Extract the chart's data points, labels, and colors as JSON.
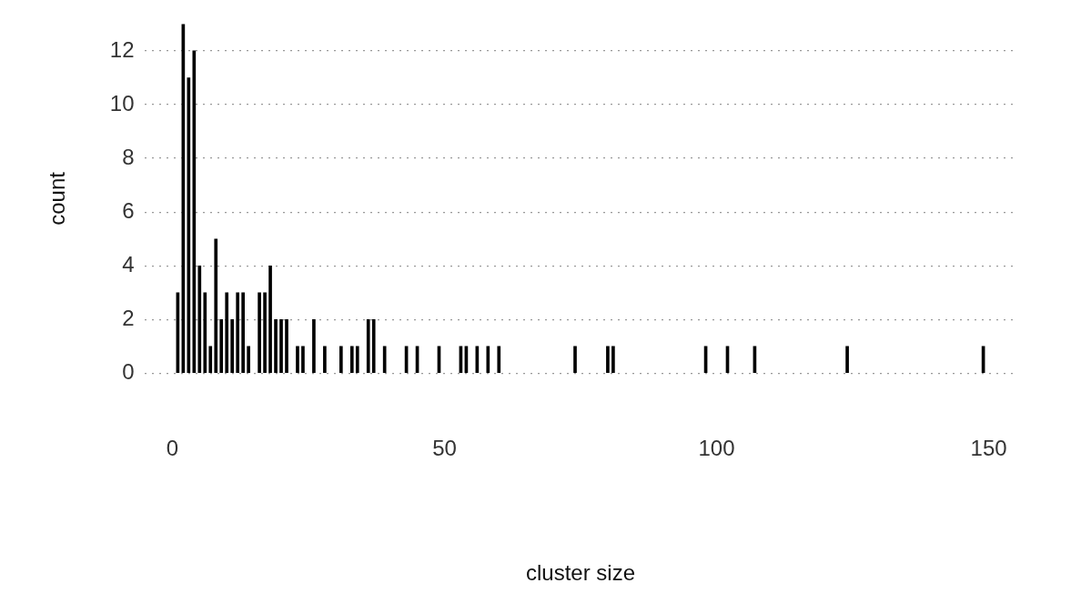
{
  "chart_data": {
    "type": "bar",
    "xlabel": "cluster size",
    "ylabel": "count",
    "x": [
      1,
      2,
      3,
      4,
      5,
      6,
      7,
      8,
      9,
      10,
      11,
      12,
      13,
      14,
      16,
      17,
      18,
      19,
      20,
      21,
      23,
      24,
      26,
      28,
      31,
      33,
      34,
      36,
      37,
      39,
      43,
      45,
      49,
      53,
      54,
      56,
      58,
      60,
      74,
      80,
      81,
      98,
      102,
      107,
      124,
      149
    ],
    "values": [
      3,
      13,
      11,
      12,
      4,
      3,
      1,
      5,
      2,
      3,
      2,
      3,
      3,
      1,
      3,
      3,
      4,
      2,
      2,
      2,
      1,
      1,
      2,
      1,
      1,
      1,
      1,
      2,
      2,
      1,
      1,
      1,
      1,
      1,
      1,
      1,
      1,
      1,
      1,
      1,
      1,
      1,
      1,
      1,
      1,
      1
    ],
    "color": "#000000",
    "xlim": [
      -5,
      155
    ],
    "xticks": [
      0,
      50,
      100,
      150
    ],
    "ylim": [
      0,
      13
    ],
    "yticks": [
      0,
      2,
      4,
      6,
      8,
      10,
      12
    ],
    "grid": "y"
  }
}
